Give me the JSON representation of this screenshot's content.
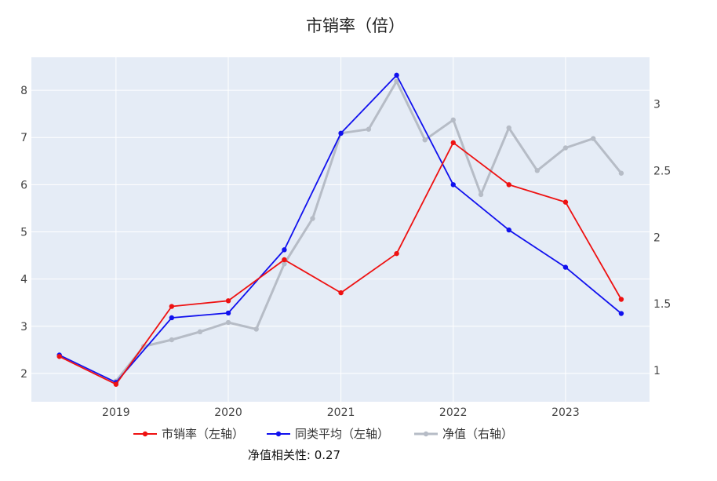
{
  "chart_data": {
    "type": "line",
    "title": "市销率（倍）",
    "note": "净值相关性: 0.27",
    "x_range": [
      "2018-04-01",
      "2023-10-01"
    ],
    "x_ticks": [
      {
        "date": "2019-01-01",
        "label": "2019"
      },
      {
        "date": "2020-01-01",
        "label": "2020"
      },
      {
        "date": "2021-01-01",
        "label": "2021"
      },
      {
        "date": "2022-01-01",
        "label": "2022"
      },
      {
        "date": "2023-01-01",
        "label": "2023"
      }
    ],
    "y_left": {
      "range": [
        1.4,
        8.7
      ],
      "ticks": [
        2,
        3,
        4,
        5,
        6,
        7,
        8
      ]
    },
    "y_right": {
      "range": [
        0.765,
        3.35
      ],
      "ticks": [
        {
          "value": 1,
          "label": "1"
        },
        {
          "value": 1.5,
          "label": "1.5"
        },
        {
          "value": 2,
          "label": "2"
        },
        {
          "value": 2.5,
          "label": "2.5"
        },
        {
          "value": 3,
          "label": "3"
        }
      ]
    },
    "grid": true,
    "legend_position": "bottom",
    "series": [
      {
        "name": "市销率（左轴）",
        "axis": "left",
        "color": "#ee1111",
        "points": [
          {
            "x": "2018-07-01",
            "y": 2.36
          },
          {
            "x": "2019-01-01",
            "y": 1.77
          },
          {
            "x": "2019-07-01",
            "y": 3.42
          },
          {
            "x": "2020-01-01",
            "y": 3.54
          },
          {
            "x": "2020-07-01",
            "y": 4.41
          },
          {
            "x": "2021-01-01",
            "y": 3.71
          },
          {
            "x": "2021-07-01",
            "y": 4.54
          },
          {
            "x": "2022-01-01",
            "y": 6.89
          },
          {
            "x": "2022-07-01",
            "y": 6.0
          },
          {
            "x": "2023-01-01",
            "y": 5.63
          },
          {
            "x": "2023-07-01",
            "y": 3.57
          }
        ]
      },
      {
        "name": "同类平均（左轴）",
        "axis": "left",
        "color": "#1111ee",
        "points": [
          {
            "x": "2018-07-01",
            "y": 2.39
          },
          {
            "x": "2019-01-01",
            "y": 1.81
          },
          {
            "x": "2019-07-01",
            "y": 3.18
          },
          {
            "x": "2020-01-01",
            "y": 3.28
          },
          {
            "x": "2020-07-01",
            "y": 4.62
          },
          {
            "x": "2021-01-01",
            "y": 7.09
          },
          {
            "x": "2021-07-01",
            "y": 8.32
          },
          {
            "x": "2022-01-01",
            "y": 6.0
          },
          {
            "x": "2022-07-01",
            "y": 5.04
          },
          {
            "x": "2023-01-01",
            "y": 4.25
          },
          {
            "x": "2023-07-01",
            "y": 3.27
          }
        ]
      },
      {
        "name": "净值（右轴）",
        "axis": "right",
        "color": "#b6bcc6",
        "points": [
          {
            "x": "2019-01-01",
            "y": 0.92
          },
          {
            "x": "2019-04-01",
            "y": 1.18
          },
          {
            "x": "2019-07-01",
            "y": 1.23
          },
          {
            "x": "2019-10-01",
            "y": 1.29
          },
          {
            "x": "2020-01-01",
            "y": 1.36
          },
          {
            "x": "2020-04-01",
            "y": 1.31
          },
          {
            "x": "2020-07-01",
            "y": 1.8
          },
          {
            "x": "2020-10-01",
            "y": 2.14
          },
          {
            "x": "2021-01-01",
            "y": 2.78
          },
          {
            "x": "2021-04-01",
            "y": 2.81
          },
          {
            "x": "2021-07-01",
            "y": 3.17
          },
          {
            "x": "2021-10-01",
            "y": 2.73
          },
          {
            "x": "2022-01-01",
            "y": 2.88
          },
          {
            "x": "2022-04-01",
            "y": 2.32
          },
          {
            "x": "2022-07-01",
            "y": 2.82
          },
          {
            "x": "2022-10-01",
            "y": 2.5
          },
          {
            "x": "2023-01-01",
            "y": 2.67
          },
          {
            "x": "2023-04-01",
            "y": 2.74
          },
          {
            "x": "2023-07-01",
            "y": 2.48
          }
        ]
      }
    ]
  }
}
